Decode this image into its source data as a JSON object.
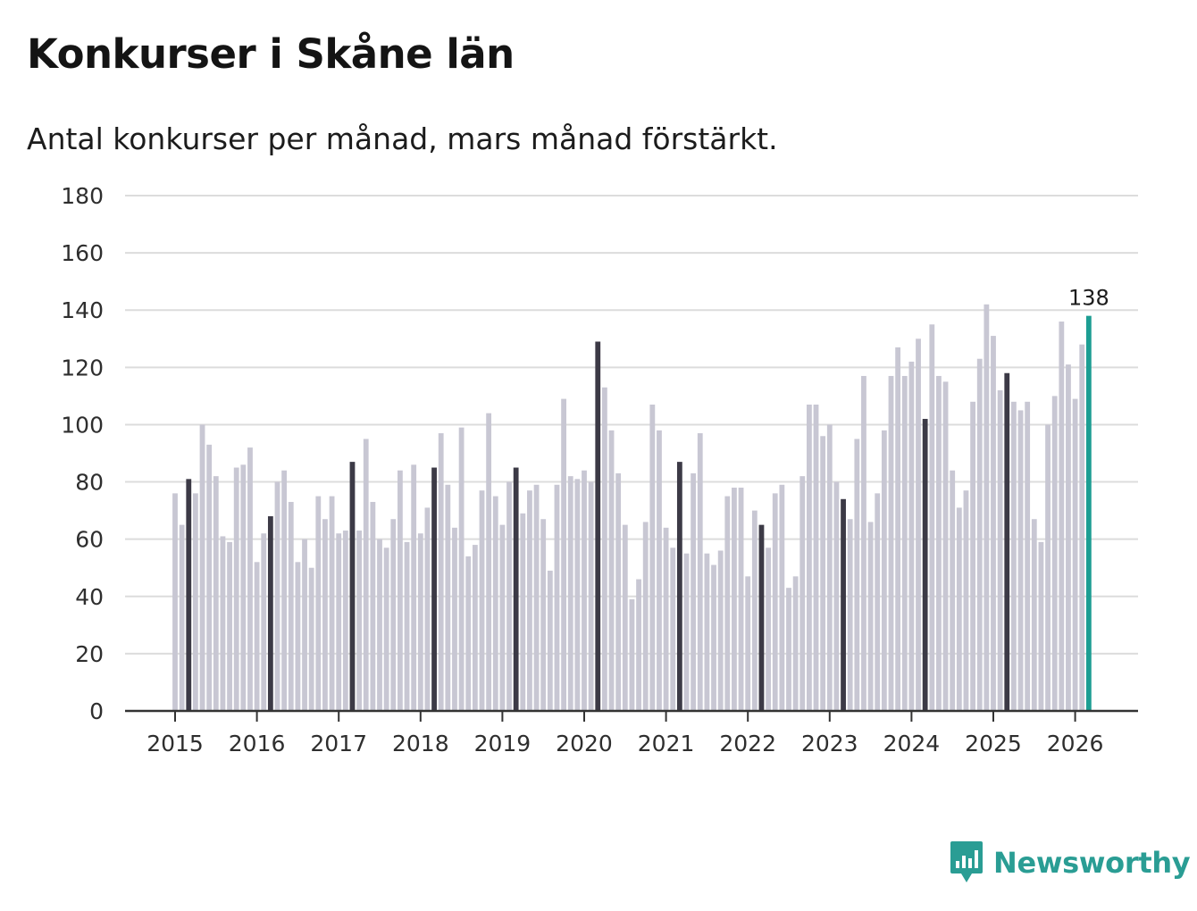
{
  "header": {
    "title": "Konkurser i Skåne län",
    "subtitle": "Antal konkurser per månad, mars månad förstärkt."
  },
  "brand": {
    "name": "Newsworthy",
    "icon": "newsworthy-logo-icon",
    "color": "#2a9d94"
  },
  "colors": {
    "bar": "#c8c7d3",
    "highlight": "#3c3a46",
    "latest": "#1d9e93",
    "grid": "#dcdcdc",
    "axis": "#333333"
  },
  "chart_data": {
    "type": "bar",
    "title": "Konkurser i Skåne län",
    "subtitle": "Antal konkurser per månad, mars månad förstärkt.",
    "xlabel": "",
    "ylabel": "",
    "ylim": [
      0,
      180
    ],
    "yticks": [
      "0",
      "20",
      "40",
      "60",
      "80",
      "100",
      "120",
      "140",
      "160",
      "180"
    ],
    "xticks": [
      "2015",
      "2016",
      "2017",
      "2018",
      "2019",
      "2020",
      "2021",
      "2022",
      "2023",
      "2024",
      "2025",
      "2026"
    ],
    "grid": true,
    "legend": "none",
    "start": "2015-01",
    "end": "2026-03",
    "highlight_month": "mars",
    "values": [
      76,
      65,
      81,
      76,
      100,
      93,
      82,
      61,
      59,
      85,
      86,
      92,
      52,
      62,
      68,
      80,
      84,
      73,
      52,
      60,
      50,
      75,
      67,
      75,
      62,
      63,
      87,
      63,
      95,
      73,
      60,
      57,
      67,
      84,
      59,
      86,
      62,
      71,
      85,
      97,
      79,
      64,
      99,
      54,
      58,
      77,
      104,
      75,
      65,
      80,
      85,
      69,
      77,
      79,
      67,
      49,
      79,
      109,
      82,
      81,
      84,
      80,
      129,
      113,
      98,
      83,
      65,
      39,
      46,
      66,
      107,
      98,
      64,
      57,
      87,
      55,
      83,
      97,
      55,
      51,
      56,
      75,
      78,
      78,
      47,
      70,
      65,
      57,
      76,
      79,
      43,
      47,
      82,
      107,
      107,
      96,
      100,
      80,
      74,
      67,
      95,
      117,
      66,
      76,
      98,
      117,
      127,
      117,
      122,
      130,
      102,
      135,
      117,
      115,
      84,
      71,
      77,
      108,
      123,
      142,
      131,
      112,
      118,
      108,
      105,
      108,
      67,
      59,
      100,
      110,
      136,
      121,
      109,
      128,
      138
    ],
    "annotations": [
      {
        "text": "138",
        "point": "2026-03"
      }
    ]
  }
}
